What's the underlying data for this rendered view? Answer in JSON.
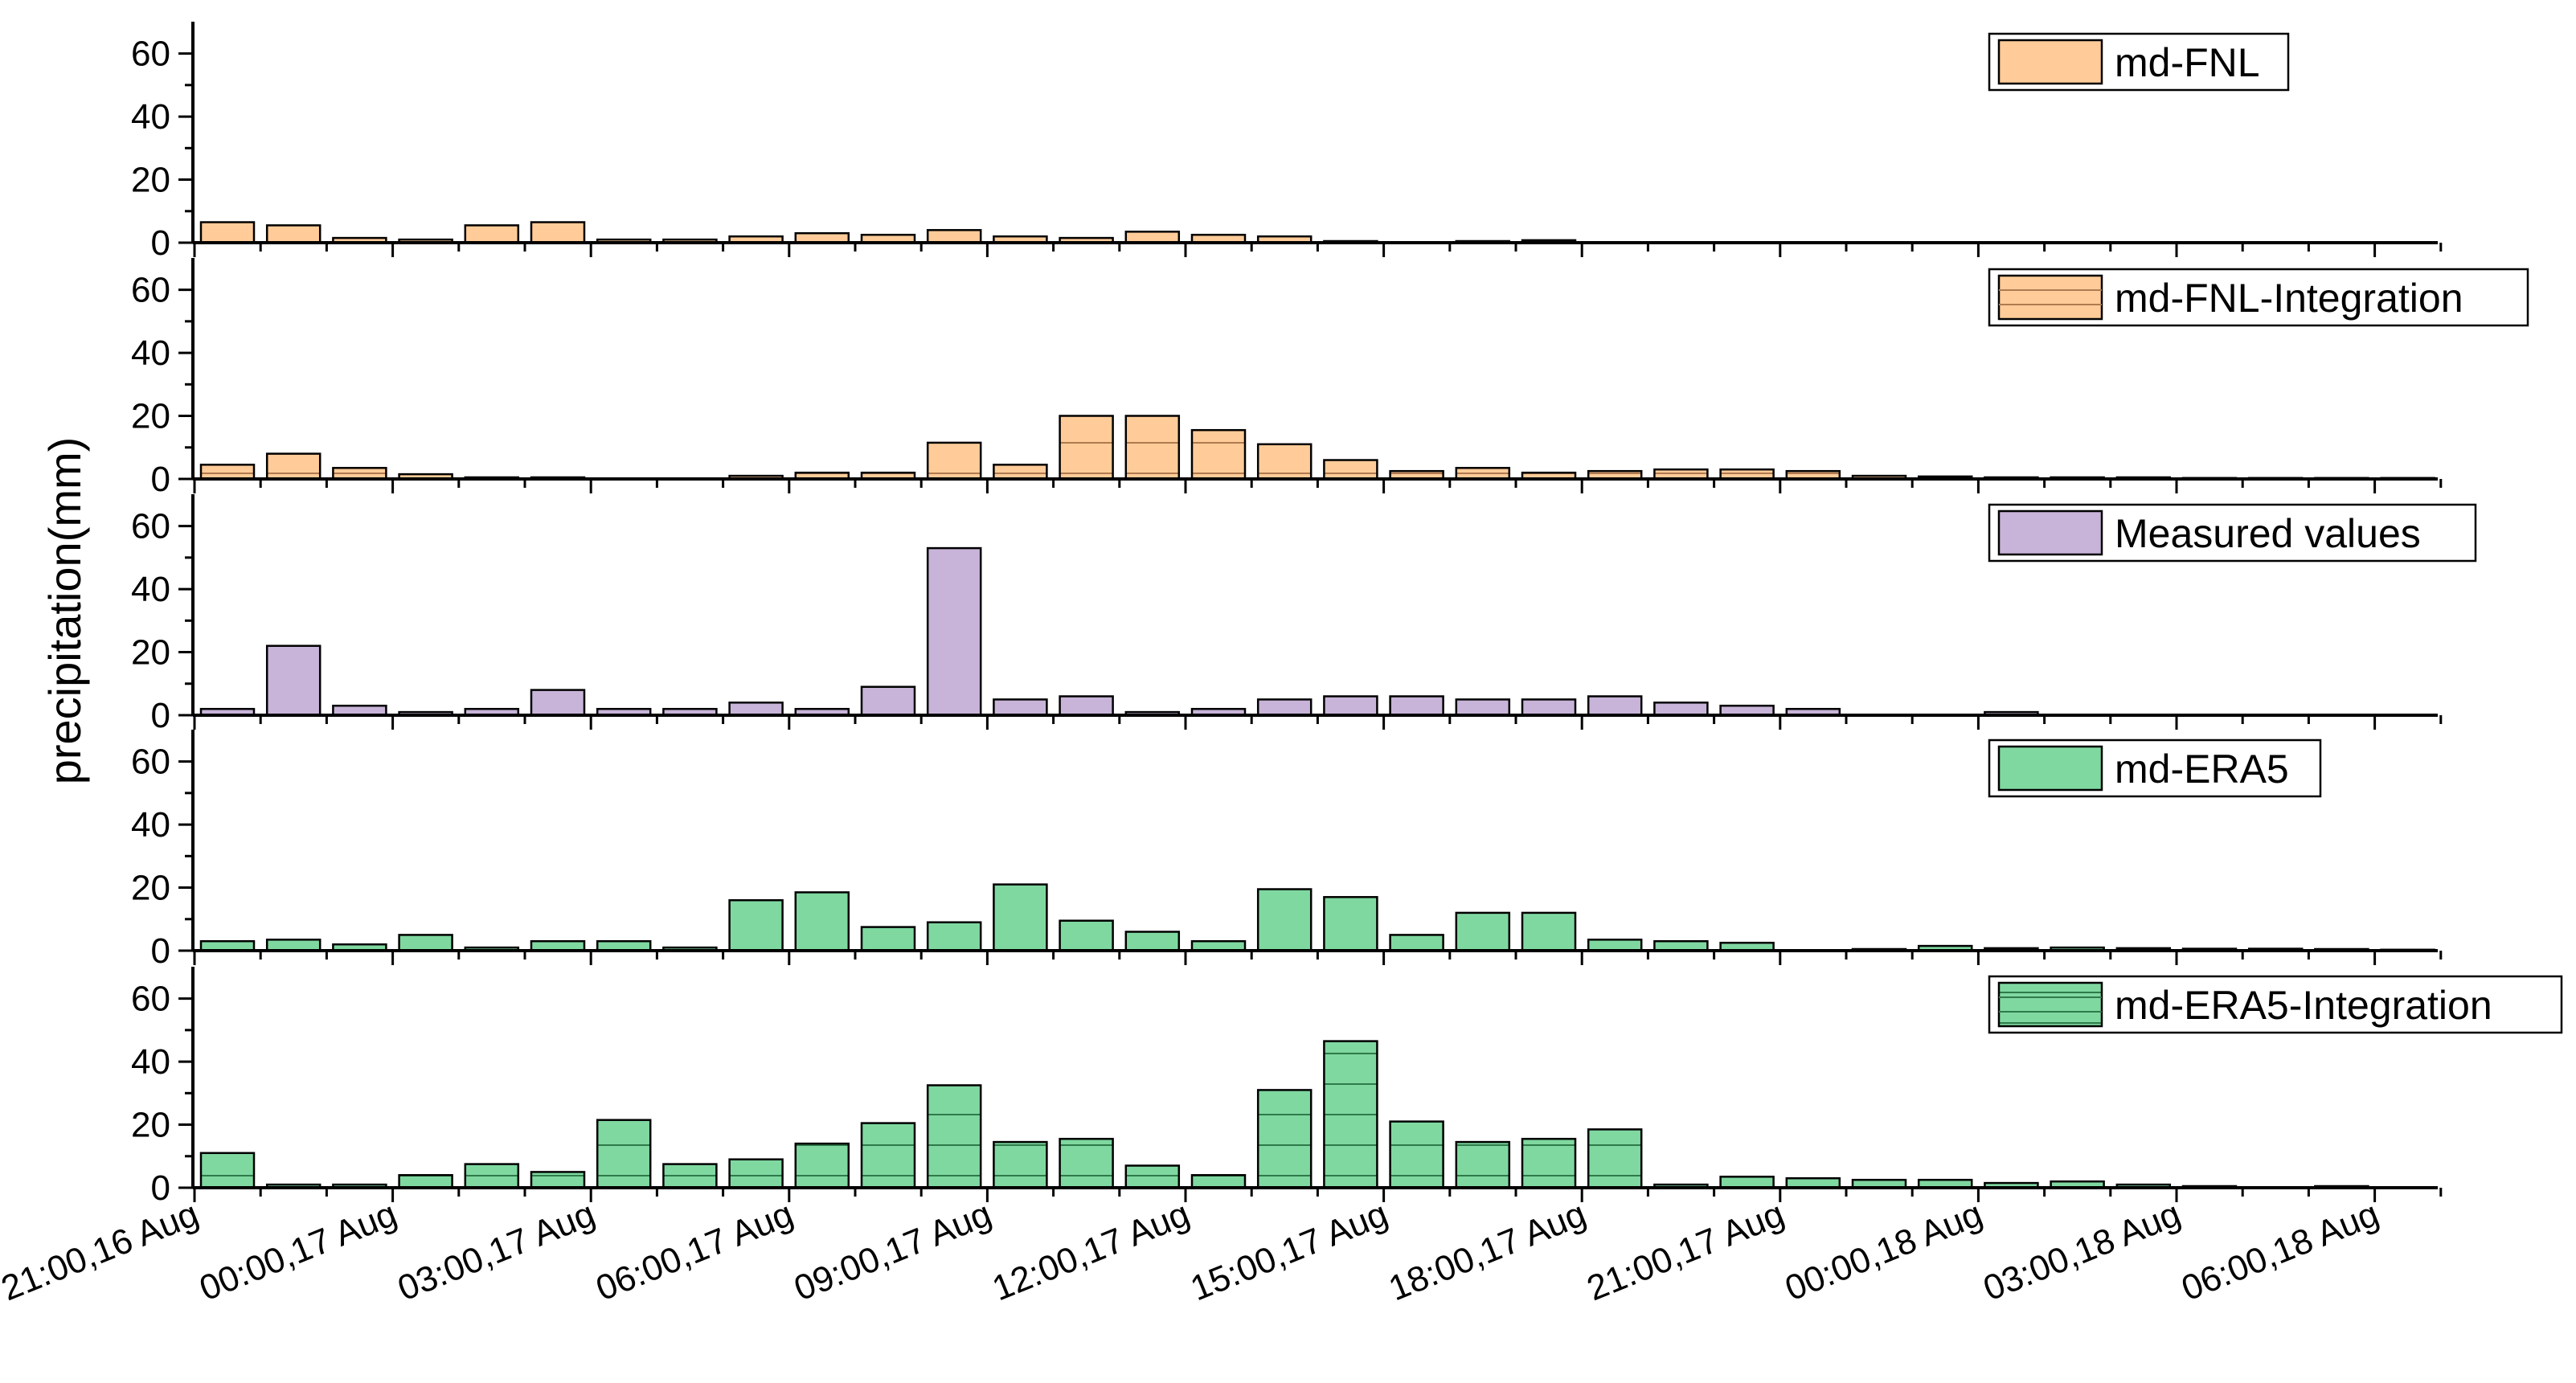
{
  "chart_data": {
    "type": "bar",
    "ylabel": "precipitation(mm)",
    "ylim": [
      0,
      65
    ],
    "yticks": [
      "0",
      "20",
      "40",
      "60"
    ],
    "x_tick_labels": [
      "21:00,16 Aug",
      "00:00,17 Aug",
      "03:00,17 Aug",
      "06:00,17 Aug",
      "09:00,17 Aug",
      "12:00,17 Aug",
      "15:00,17 Aug",
      "18:00,17 Aug",
      "21:00,17 Aug",
      "00:00,18 Aug",
      "03:00,18 Aug",
      "06:00,18 Aug"
    ],
    "time_step_hours": 1,
    "legend_placement": "top-right",
    "series": [
      {
        "name": "md-FNL",
        "color": "#FFCC99",
        "hatch": false,
        "values": [
          6.5,
          5.5,
          1.5,
          1.0,
          5.5,
          6.5,
          1.0,
          1.0,
          2.0,
          3.0,
          2.5,
          4.0,
          2.0,
          1.5,
          3.5,
          2.5,
          2.0,
          0.5,
          0,
          0.5,
          0.8,
          0,
          0,
          0,
          0,
          0,
          0,
          0,
          0,
          0,
          0,
          0,
          0,
          0
        ]
      },
      {
        "name": "md-FNL-Integration",
        "color": "#FFCC99",
        "hatch": true,
        "values": [
          4.5,
          8.0,
          3.5,
          1.5,
          0.5,
          0.5,
          0,
          0,
          1.0,
          2.0,
          2.0,
          11.5,
          4.5,
          20.0,
          20.0,
          15.5,
          11.0,
          6.0,
          2.5,
          3.5,
          2.0,
          2.5,
          3.0,
          3.0,
          2.5,
          1.0,
          0.8,
          0.5,
          0.5,
          0.5,
          0.3,
          0.3,
          0.3,
          0.3
        ]
      },
      {
        "name": "Measured values",
        "color": "#C8B4D8",
        "hatch": false,
        "values": [
          2.0,
          22.0,
          3.0,
          1.0,
          2.0,
          8.0,
          2.0,
          2.0,
          4.0,
          2.0,
          9.0,
          53.0,
          5.0,
          6.0,
          1.0,
          2.0,
          5.0,
          6.0,
          6.0,
          5.0,
          5.0,
          6.0,
          4.0,
          3.0,
          2.0,
          0,
          0,
          1.0,
          0,
          0,
          0,
          0,
          0,
          0
        ]
      },
      {
        "name": "md-ERA5",
        "color": "#7FD8A0",
        "hatch": false,
        "values": [
          3.0,
          3.5,
          2.0,
          5.0,
          1.0,
          3.0,
          3.0,
          1.0,
          16.0,
          18.5,
          7.5,
          9.0,
          21.0,
          9.5,
          6.0,
          3.0,
          19.5,
          17.0,
          5.0,
          12.0,
          12.0,
          3.5,
          3.0,
          2.5,
          0,
          0.5,
          1.5,
          0.8,
          1.0,
          0.8,
          0.6,
          0.6,
          0.5,
          0.3
        ]
      },
      {
        "name": "md-ERA5-Integration",
        "color": "#7FD8A0",
        "hatch": true,
        "values": [
          11.0,
          1.0,
          1.0,
          4.0,
          7.5,
          5.0,
          21.5,
          7.5,
          9.0,
          14.0,
          20.5,
          32.5,
          14.5,
          15.5,
          7.0,
          4.0,
          31.0,
          46.5,
          21.0,
          14.5,
          15.5,
          18.5,
          1.0,
          3.5,
          3.0,
          2.5,
          2.5,
          1.5,
          2.0,
          1.0,
          0.5,
          0,
          0.5,
          0
        ]
      }
    ]
  }
}
